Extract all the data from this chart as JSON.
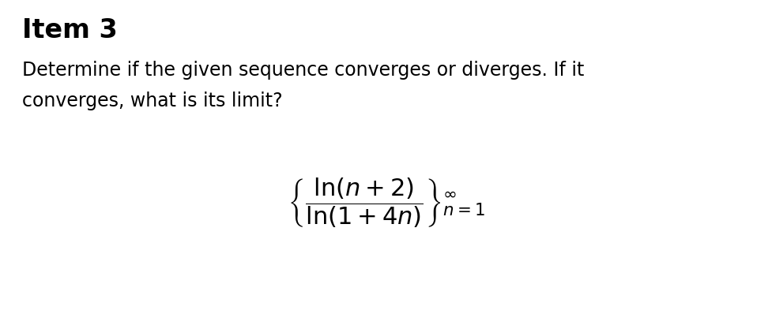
{
  "background_color": "#ffffff",
  "title_text": "Item 3",
  "title_fontsize": 24,
  "title_fontweight": "bold",
  "body_text": "Determine if the given sequence converges or diverges. If it\nconverges, what is its limit?",
  "body_fontsize": 17,
  "body_fontweight": "normal",
  "formula_fontsize": 22,
  "formula_color": "#000000",
  "text_color": "#000000"
}
